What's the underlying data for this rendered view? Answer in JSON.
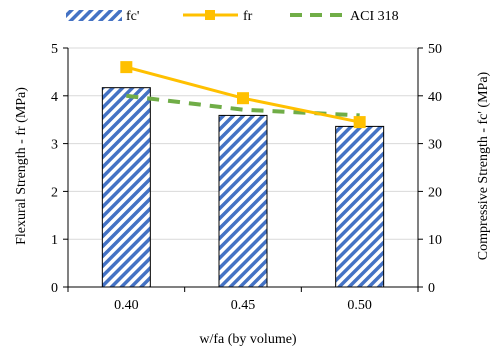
{
  "colors": {
    "bar_stripe": "#4472c4",
    "bar_border": "#000000",
    "fr_line": "#ffc000",
    "aci_line": "#70ad47",
    "axis": "#000000",
    "grid": "#d9d9d9"
  },
  "legend": {
    "position": "top",
    "items": [
      {
        "label": "fc'",
        "style": "hatched-bar"
      },
      {
        "label": "fr",
        "style": "line-square-marker"
      },
      {
        "label": "ACI 318",
        "style": "dashed-line"
      }
    ]
  },
  "chart_data": {
    "type": "bar",
    "categories": [
      "0.40",
      "0.45",
      "0.50"
    ],
    "xlabel": "w/fa (by volume)",
    "ylabel": "Flexural Strength - fr (MPa)",
    "y2label": "Compressive Strength - fc' (MPa)",
    "ylim": [
      0,
      5
    ],
    "y2lim": [
      0,
      50
    ],
    "yticks": [
      "0",
      "1",
      "2",
      "3",
      "4",
      "5"
    ],
    "y2ticks": [
      "0",
      "10",
      "20",
      "30",
      "40",
      "50"
    ],
    "grid": true,
    "series": [
      {
        "name": "fc'",
        "kind": "bar",
        "axis": "right",
        "values": [
          41.7,
          35.9,
          33.6
        ]
      },
      {
        "name": "fr",
        "kind": "line",
        "axis": "left",
        "values": [
          4.6,
          3.95,
          3.45
        ]
      },
      {
        "name": "ACI 318",
        "kind": "dashed-line",
        "axis": "left",
        "values": [
          4.0,
          3.71,
          3.59
        ]
      }
    ]
  }
}
